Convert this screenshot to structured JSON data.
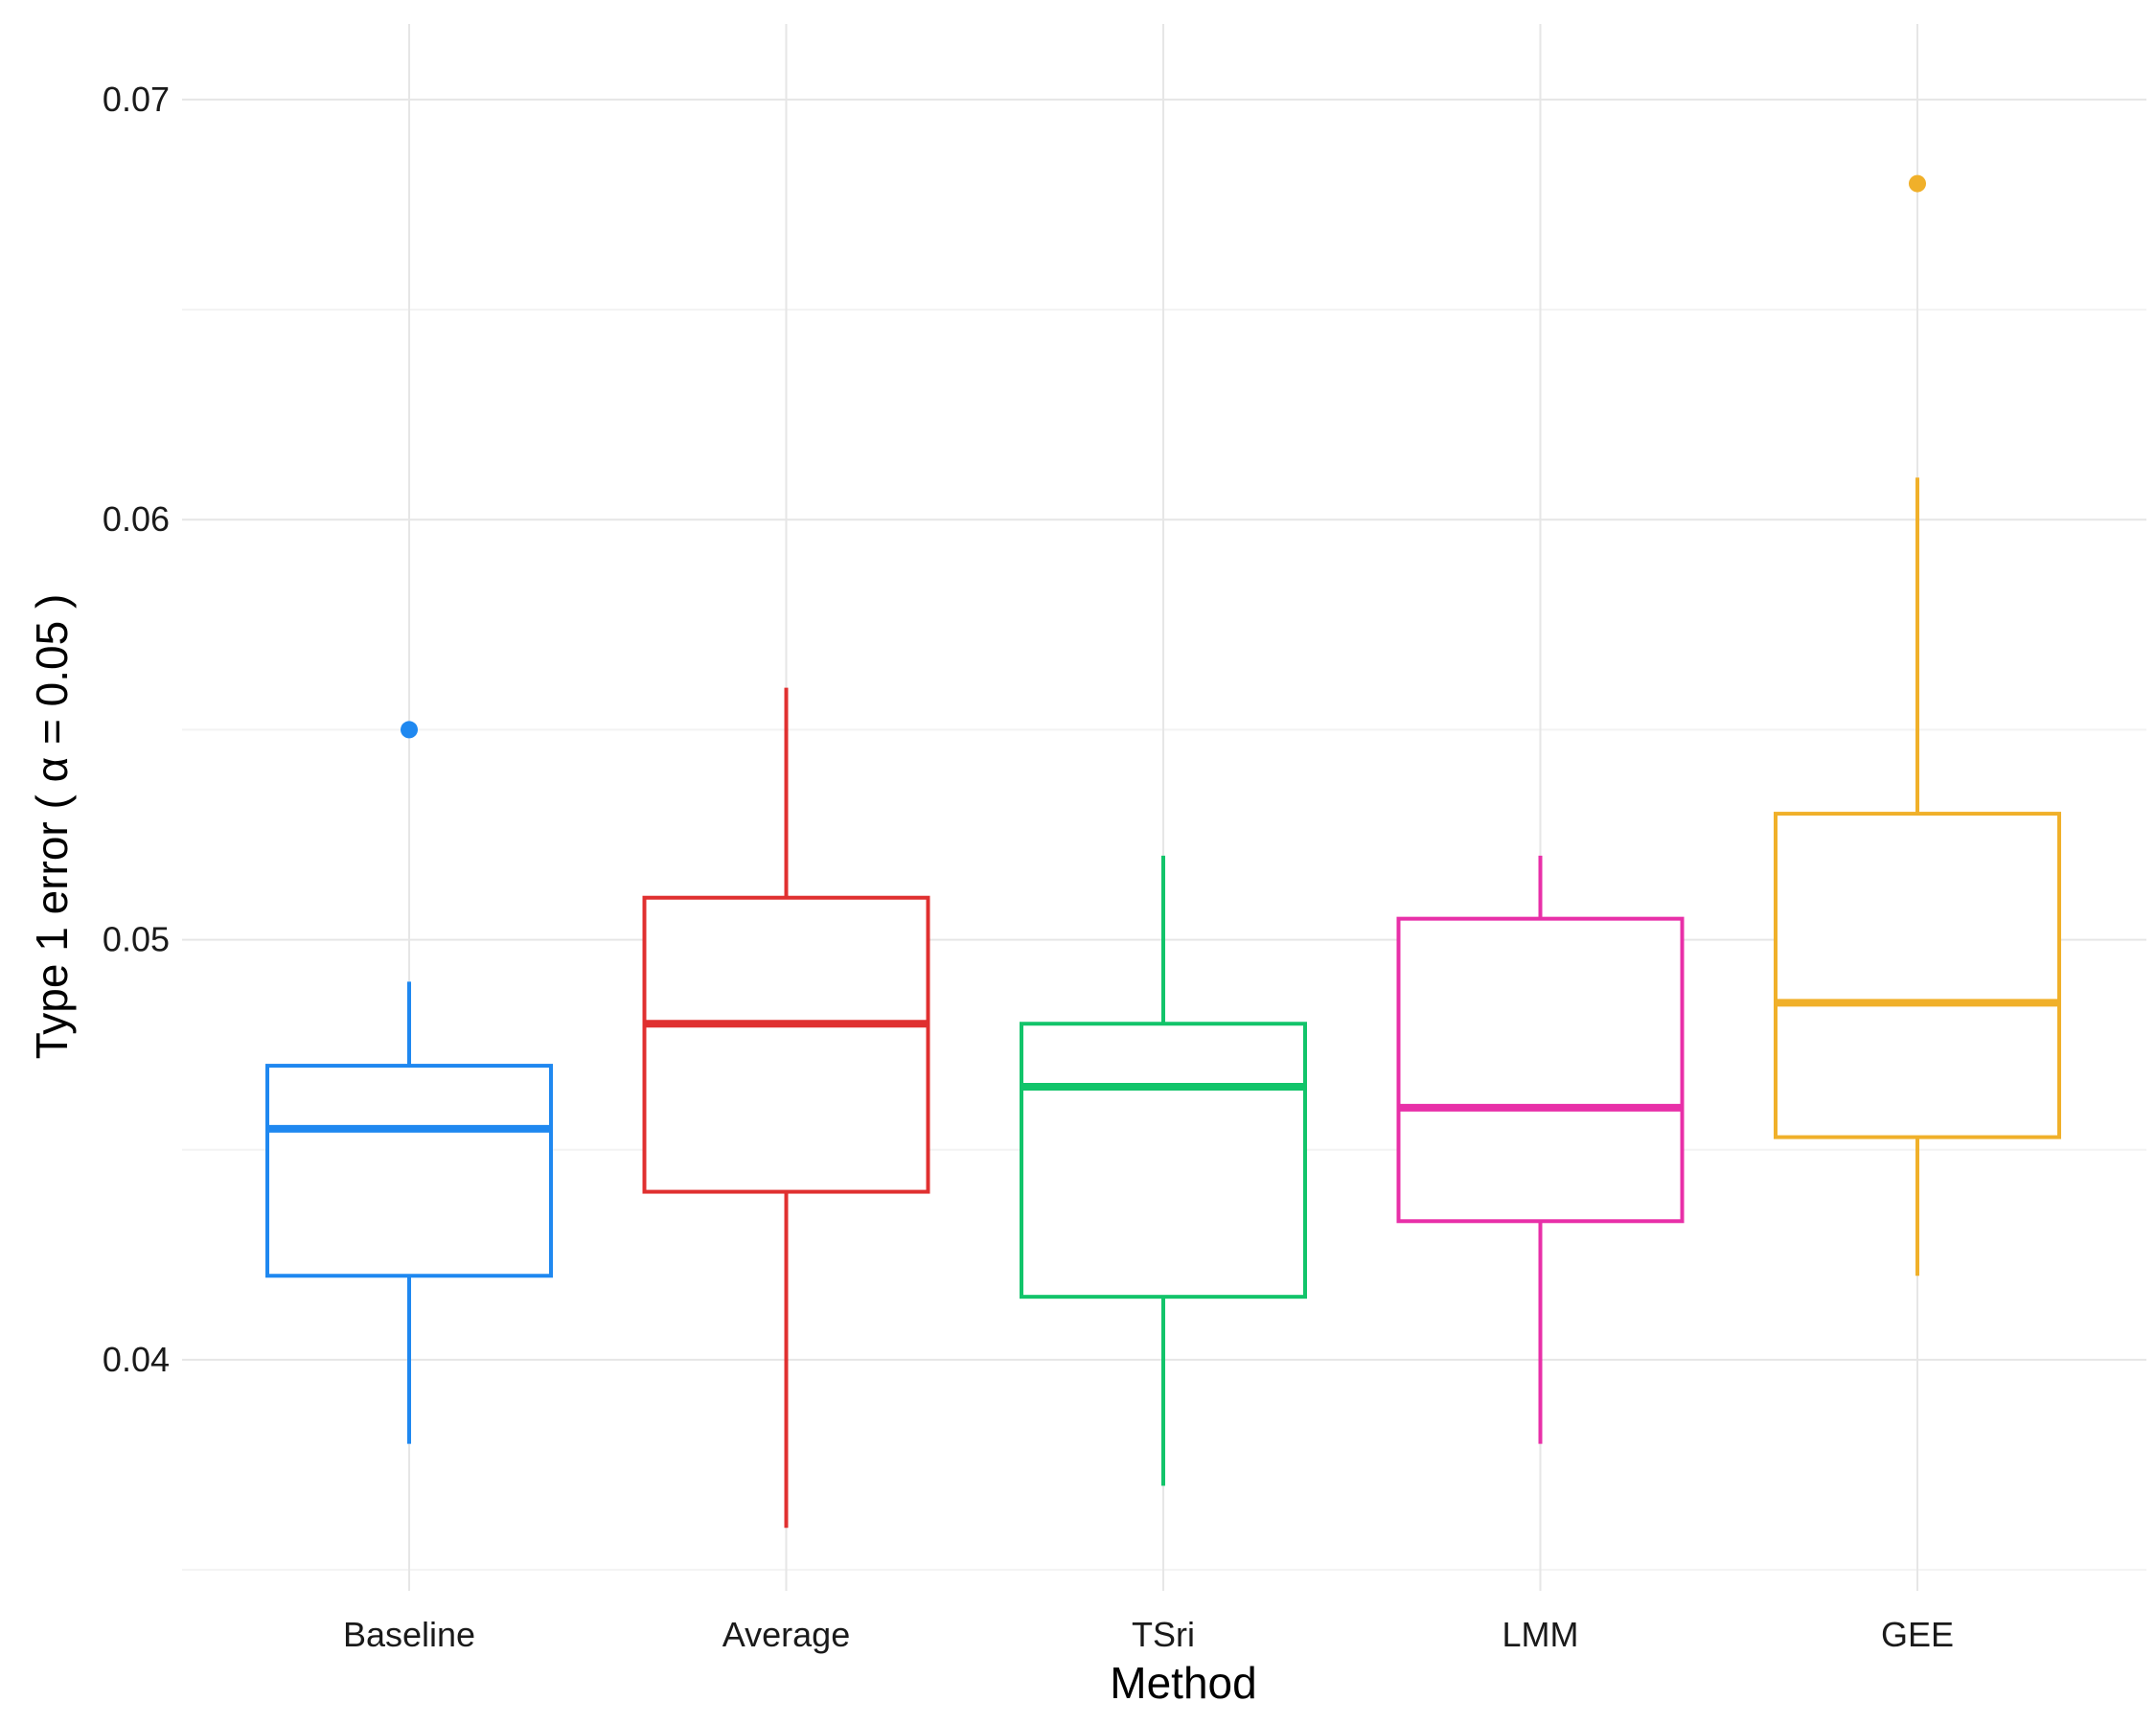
{
  "chart_data": {
    "type": "boxplot",
    "xlabel": "Method",
    "ylabel": "Type 1 error ( α = 0.05 )",
    "ylim": [
      0.0345,
      0.0718
    ],
    "yticks": [
      0.04,
      0.05,
      0.06,
      0.07
    ],
    "ytick_labels": [
      "0.04",
      "0.05",
      "0.06",
      "0.07"
    ],
    "grid": true,
    "legend": "none",
    "categories": [
      "Baseline",
      "Average",
      "TSri",
      "LMM",
      "GEE"
    ],
    "series": [
      {
        "category": "Baseline",
        "color": "#1f88f0",
        "whisker_low": 0.038,
        "q1": 0.042,
        "median": 0.0455,
        "q3": 0.047,
        "whisker_high": 0.049,
        "outliers": [
          0.055
        ]
      },
      {
        "category": "Average",
        "color": "#e03030",
        "whisker_low": 0.036,
        "q1": 0.044,
        "median": 0.048,
        "q3": 0.051,
        "whisker_high": 0.056,
        "outliers": []
      },
      {
        "category": "TSri",
        "color": "#12c46a",
        "whisker_low": 0.037,
        "q1": 0.0415,
        "median": 0.0465,
        "q3": 0.048,
        "whisker_high": 0.052,
        "outliers": []
      },
      {
        "category": "LMM",
        "color": "#e830a8",
        "whisker_low": 0.038,
        "q1": 0.0433,
        "median": 0.046,
        "q3": 0.0505,
        "whisker_high": 0.052,
        "outliers": []
      },
      {
        "category": "GEE",
        "color": "#f0b02a",
        "whisker_low": 0.042,
        "q1": 0.0453,
        "median": 0.0485,
        "q3": 0.053,
        "whisker_high": 0.061,
        "outliers": [
          0.068
        ]
      }
    ]
  }
}
